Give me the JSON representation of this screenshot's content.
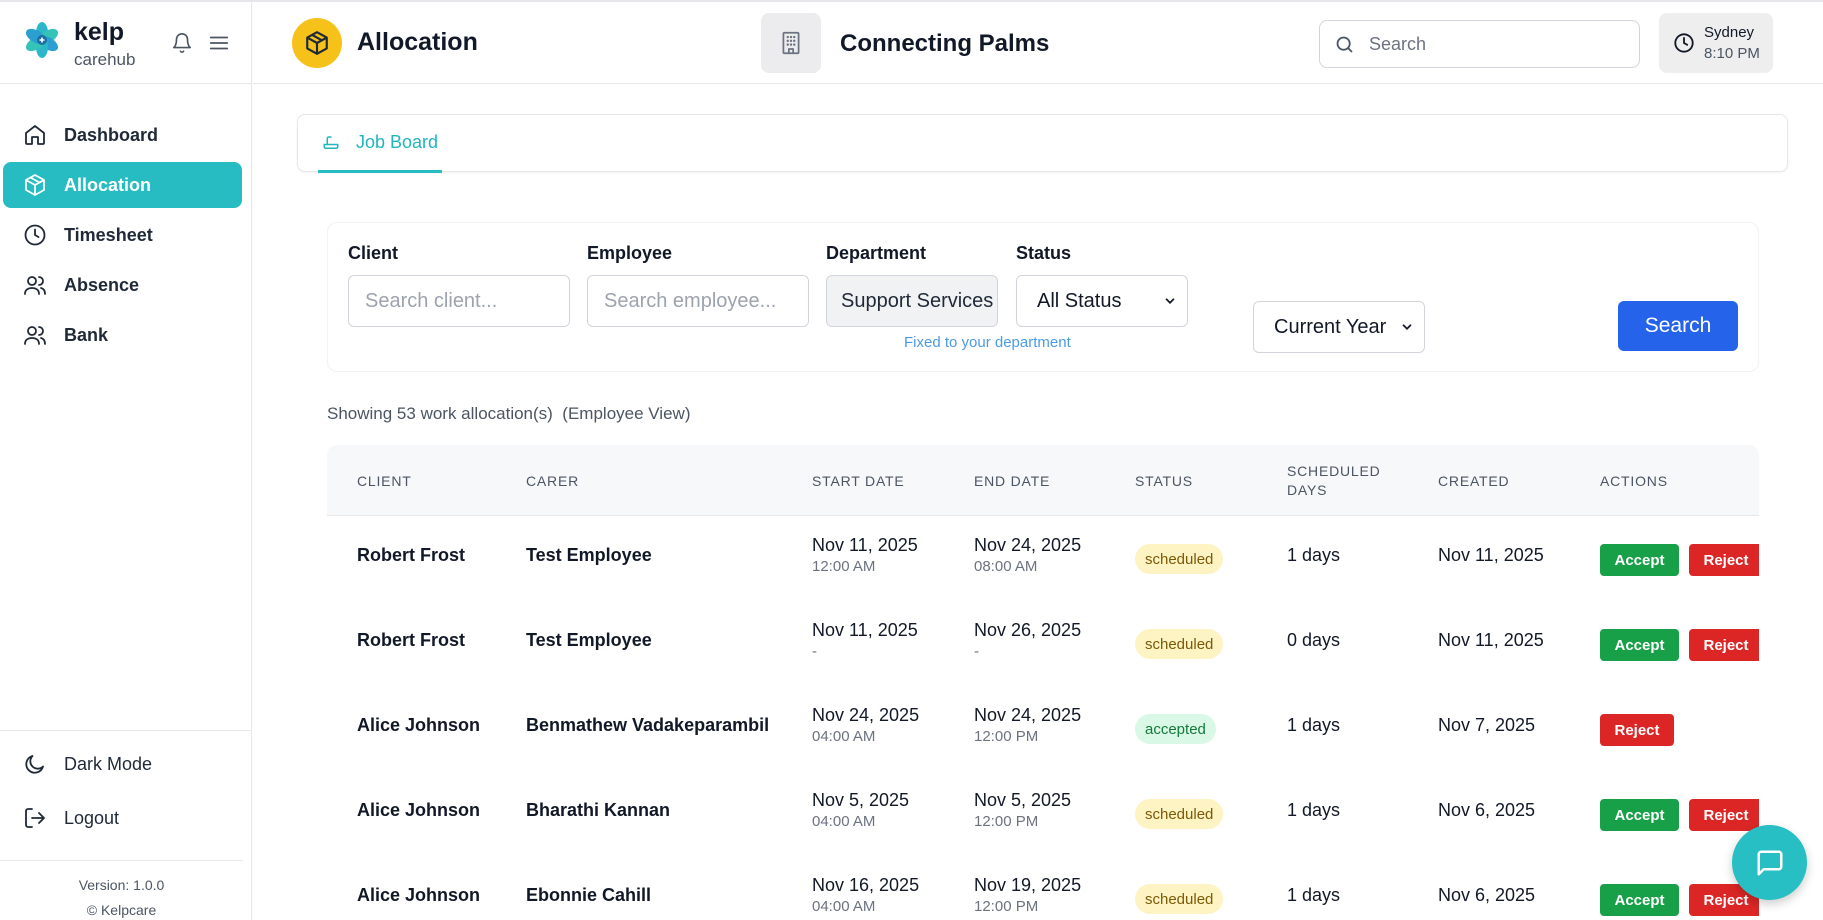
{
  "brand": {
    "name": "kelp",
    "subtitle": "carehub"
  },
  "sidebar": {
    "items": [
      {
        "label": "Dashboard",
        "icon": "home-icon"
      },
      {
        "label": "Allocation",
        "icon": "package-icon",
        "active": true
      },
      {
        "label": "Timesheet",
        "icon": "clock-icon"
      },
      {
        "label": "Absence",
        "icon": "users-icon"
      },
      {
        "label": "Bank",
        "icon": "users-icon"
      }
    ],
    "dark_mode": "Dark Mode",
    "logout": "Logout",
    "version": "Version: 1.0.0",
    "copyright": "© Kelpcare"
  },
  "header": {
    "title": "Allocation",
    "org_name": "Connecting Palms",
    "search_placeholder": "Search",
    "city": "Sydney",
    "time": "8:10 PM"
  },
  "tabs": [
    {
      "label": "Job Board",
      "active": true
    }
  ],
  "filters": {
    "client_label": "Client",
    "client_placeholder": "Search client...",
    "employee_label": "Employee",
    "employee_placeholder": "Search employee...",
    "department_label": "Department",
    "department_value": "Support Services",
    "department_hint": "Fixed to your department",
    "status_label": "Status",
    "status_value": "All Status",
    "period_value": "Current Year",
    "search_button": "Search"
  },
  "summary": {
    "showing": "Showing 53 work allocation(s)",
    "view": "(Employee View)"
  },
  "table": {
    "columns": [
      "CLIENT",
      "CARER",
      "START DATE",
      "END DATE",
      "STATUS",
      "SCHEDULED",
      "DAYS",
      "CREATED",
      "ACTIONS"
    ],
    "rows": [
      {
        "client": "Robert Frost",
        "carer": "Test Employee",
        "start_date": "Nov 11, 2025",
        "start_time": "12:00 AM",
        "end_date": "Nov 24, 2025",
        "end_time": "08:00 AM",
        "status": "scheduled",
        "days": "1 days",
        "created": "Nov 11, 2025",
        "accept": "Accept",
        "reject": "Reject"
      },
      {
        "client": "Robert Frost",
        "carer": "Test Employee",
        "start_date": "Nov 11, 2025",
        "start_time": "-",
        "end_date": "Nov 26, 2025",
        "end_time": "-",
        "status": "scheduled",
        "days": "0 days",
        "created": "Nov 11, 2025",
        "accept": "Accept",
        "reject": "Reject"
      },
      {
        "client": "Alice Johnson",
        "carer": "Benmathew Vadakeparambil",
        "start_date": "Nov 24, 2025",
        "start_time": "04:00 AM",
        "end_date": "Nov 24, 2025",
        "end_time": "12:00 PM",
        "status": "accepted",
        "days": "1 days",
        "created": "Nov 7, 2025",
        "accept": "",
        "reject": "Reject"
      },
      {
        "client": "Alice Johnson",
        "carer": "Bharathi Kannan",
        "start_date": "Nov 5, 2025",
        "start_time": "04:00 AM",
        "end_date": "Nov 5, 2025",
        "end_time": "12:00 PM",
        "status": "scheduled",
        "days": "1 days",
        "created": "Nov 6, 2025",
        "accept": "Accept",
        "reject": "Reject"
      },
      {
        "client": "Alice Johnson",
        "carer": "Ebonnie Cahill",
        "start_date": "Nov 16, 2025",
        "start_time": "04:00 AM",
        "end_date": "Nov 19, 2025",
        "end_time": "12:00 PM",
        "status": "scheduled",
        "days": "1 days",
        "created": "Nov 6, 2025",
        "accept": "Accept",
        "reject": "Reject"
      }
    ]
  },
  "colors": {
    "accent": "#26bcc1",
    "primary": "#2563eb",
    "accept": "#17a048",
    "reject": "#dc2626",
    "page_icon": "#f6c21a"
  }
}
